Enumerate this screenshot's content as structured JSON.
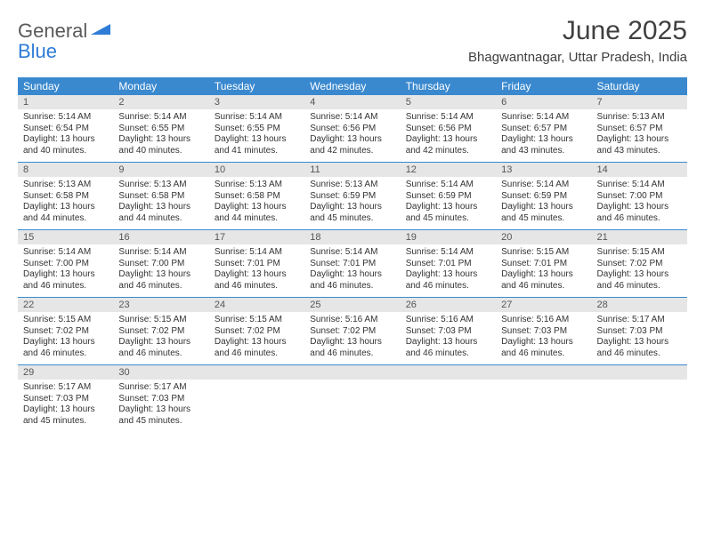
{
  "logo": {
    "word1": "General",
    "word2": "Blue"
  },
  "title": "June 2025",
  "subtitle": "Bhagwantnagar, Uttar Pradesh, India",
  "colors": {
    "header_bg": "#3a89cf",
    "header_text": "#ffffff",
    "daynum_bg": "#e6e6e6",
    "border": "#3a89cf",
    "logo_gray": "#5a5a5a",
    "logo_blue": "#2e7cd6"
  },
  "day_headers": [
    "Sunday",
    "Monday",
    "Tuesday",
    "Wednesday",
    "Thursday",
    "Friday",
    "Saturday"
  ],
  "weeks": [
    [
      {
        "n": "1",
        "sunrise": "Sunrise: 5:14 AM",
        "sunset": "Sunset: 6:54 PM",
        "daylight": "Daylight: 13 hours and 40 minutes."
      },
      {
        "n": "2",
        "sunrise": "Sunrise: 5:14 AM",
        "sunset": "Sunset: 6:55 PM",
        "daylight": "Daylight: 13 hours and 40 minutes."
      },
      {
        "n": "3",
        "sunrise": "Sunrise: 5:14 AM",
        "sunset": "Sunset: 6:55 PM",
        "daylight": "Daylight: 13 hours and 41 minutes."
      },
      {
        "n": "4",
        "sunrise": "Sunrise: 5:14 AM",
        "sunset": "Sunset: 6:56 PM",
        "daylight": "Daylight: 13 hours and 42 minutes."
      },
      {
        "n": "5",
        "sunrise": "Sunrise: 5:14 AM",
        "sunset": "Sunset: 6:56 PM",
        "daylight": "Daylight: 13 hours and 42 minutes."
      },
      {
        "n": "6",
        "sunrise": "Sunrise: 5:14 AM",
        "sunset": "Sunset: 6:57 PM",
        "daylight": "Daylight: 13 hours and 43 minutes."
      },
      {
        "n": "7",
        "sunrise": "Sunrise: 5:13 AM",
        "sunset": "Sunset: 6:57 PM",
        "daylight": "Daylight: 13 hours and 43 minutes."
      }
    ],
    [
      {
        "n": "8",
        "sunrise": "Sunrise: 5:13 AM",
        "sunset": "Sunset: 6:58 PM",
        "daylight": "Daylight: 13 hours and 44 minutes."
      },
      {
        "n": "9",
        "sunrise": "Sunrise: 5:13 AM",
        "sunset": "Sunset: 6:58 PM",
        "daylight": "Daylight: 13 hours and 44 minutes."
      },
      {
        "n": "10",
        "sunrise": "Sunrise: 5:13 AM",
        "sunset": "Sunset: 6:58 PM",
        "daylight": "Daylight: 13 hours and 44 minutes."
      },
      {
        "n": "11",
        "sunrise": "Sunrise: 5:13 AM",
        "sunset": "Sunset: 6:59 PM",
        "daylight": "Daylight: 13 hours and 45 minutes."
      },
      {
        "n": "12",
        "sunrise": "Sunrise: 5:14 AM",
        "sunset": "Sunset: 6:59 PM",
        "daylight": "Daylight: 13 hours and 45 minutes."
      },
      {
        "n": "13",
        "sunrise": "Sunrise: 5:14 AM",
        "sunset": "Sunset: 6:59 PM",
        "daylight": "Daylight: 13 hours and 45 minutes."
      },
      {
        "n": "14",
        "sunrise": "Sunrise: 5:14 AM",
        "sunset": "Sunset: 7:00 PM",
        "daylight": "Daylight: 13 hours and 46 minutes."
      }
    ],
    [
      {
        "n": "15",
        "sunrise": "Sunrise: 5:14 AM",
        "sunset": "Sunset: 7:00 PM",
        "daylight": "Daylight: 13 hours and 46 minutes."
      },
      {
        "n": "16",
        "sunrise": "Sunrise: 5:14 AM",
        "sunset": "Sunset: 7:00 PM",
        "daylight": "Daylight: 13 hours and 46 minutes."
      },
      {
        "n": "17",
        "sunrise": "Sunrise: 5:14 AM",
        "sunset": "Sunset: 7:01 PM",
        "daylight": "Daylight: 13 hours and 46 minutes."
      },
      {
        "n": "18",
        "sunrise": "Sunrise: 5:14 AM",
        "sunset": "Sunset: 7:01 PM",
        "daylight": "Daylight: 13 hours and 46 minutes."
      },
      {
        "n": "19",
        "sunrise": "Sunrise: 5:14 AM",
        "sunset": "Sunset: 7:01 PM",
        "daylight": "Daylight: 13 hours and 46 minutes."
      },
      {
        "n": "20",
        "sunrise": "Sunrise: 5:15 AM",
        "sunset": "Sunset: 7:01 PM",
        "daylight": "Daylight: 13 hours and 46 minutes."
      },
      {
        "n": "21",
        "sunrise": "Sunrise: 5:15 AM",
        "sunset": "Sunset: 7:02 PM",
        "daylight": "Daylight: 13 hours and 46 minutes."
      }
    ],
    [
      {
        "n": "22",
        "sunrise": "Sunrise: 5:15 AM",
        "sunset": "Sunset: 7:02 PM",
        "daylight": "Daylight: 13 hours and 46 minutes."
      },
      {
        "n": "23",
        "sunrise": "Sunrise: 5:15 AM",
        "sunset": "Sunset: 7:02 PM",
        "daylight": "Daylight: 13 hours and 46 minutes."
      },
      {
        "n": "24",
        "sunrise": "Sunrise: 5:15 AM",
        "sunset": "Sunset: 7:02 PM",
        "daylight": "Daylight: 13 hours and 46 minutes."
      },
      {
        "n": "25",
        "sunrise": "Sunrise: 5:16 AM",
        "sunset": "Sunset: 7:02 PM",
        "daylight": "Daylight: 13 hours and 46 minutes."
      },
      {
        "n": "26",
        "sunrise": "Sunrise: 5:16 AM",
        "sunset": "Sunset: 7:03 PM",
        "daylight": "Daylight: 13 hours and 46 minutes."
      },
      {
        "n": "27",
        "sunrise": "Sunrise: 5:16 AM",
        "sunset": "Sunset: 7:03 PM",
        "daylight": "Daylight: 13 hours and 46 minutes."
      },
      {
        "n": "28",
        "sunrise": "Sunrise: 5:17 AM",
        "sunset": "Sunset: 7:03 PM",
        "daylight": "Daylight: 13 hours and 46 minutes."
      }
    ],
    [
      {
        "n": "29",
        "sunrise": "Sunrise: 5:17 AM",
        "sunset": "Sunset: 7:03 PM",
        "daylight": "Daylight: 13 hours and 45 minutes."
      },
      {
        "n": "30",
        "sunrise": "Sunrise: 5:17 AM",
        "sunset": "Sunset: 7:03 PM",
        "daylight": "Daylight: 13 hours and 45 minutes."
      },
      null,
      null,
      null,
      null,
      null
    ]
  ]
}
